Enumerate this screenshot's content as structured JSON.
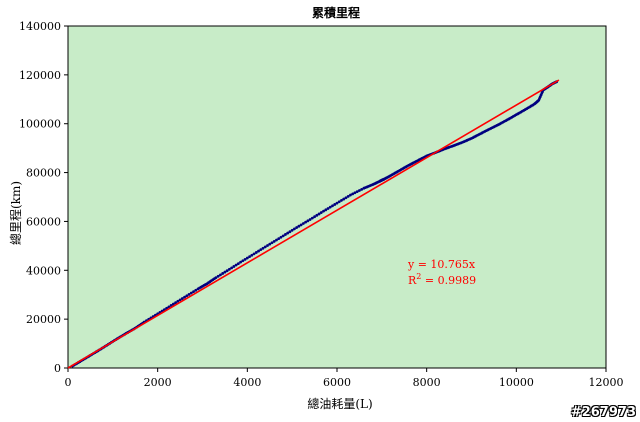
{
  "chart_data": {
    "type": "scatter",
    "title": "累積里程",
    "xlabel": "總油耗量(L)",
    "ylabel": "總里程(km)",
    "xlim": [
      0,
      12000
    ],
    "ylim": [
      0,
      140000
    ],
    "x_ticks": [
      0,
      2000,
      4000,
      6000,
      8000,
      10000,
      12000
    ],
    "y_ticks": [
      0,
      20000,
      40000,
      60000,
      80000,
      100000,
      120000,
      140000
    ],
    "grid": false,
    "legend": "none",
    "background_color": "#c8ecc8",
    "series": [
      {
        "color": "#000080",
        "x": [
          100,
          300,
          500,
          700,
          900,
          1100,
          1300,
          1500,
          1700,
          2000,
          2300,
          2600,
          2900,
          3100,
          3300,
          3600,
          3900,
          4200,
          4500,
          4800,
          5100,
          5400,
          5700,
          6000,
          6300,
          6600,
          6800,
          6950,
          7000,
          7050,
          7200,
          7400,
          7600,
          7800,
          8000,
          8200,
          8400,
          8600,
          8800,
          9000,
          9200,
          9400,
          9600,
          9800,
          10000,
          10200,
          10400,
          10500,
          10600,
          10700,
          10800,
          10900
        ],
        "y": [
          800,
          3000,
          5200,
          7400,
          9700,
          12000,
          14200,
          16300,
          18800,
          22200,
          25600,
          29000,
          32400,
          34500,
          37000,
          40400,
          43900,
          47300,
          50700,
          54100,
          57500,
          60800,
          64200,
          67500,
          70800,
          73600,
          75100,
          76400,
          76900,
          77300,
          78800,
          80900,
          83000,
          84900,
          86800,
          88200,
          89700,
          91000,
          92400,
          94000,
          95900,
          97800,
          99600,
          101600,
          103700,
          105800,
          108000,
          109600,
          113800,
          115000,
          116300,
          117200
        ]
      }
    ],
    "trendline": {
      "color": "#ff0000",
      "slope": 10.765,
      "x_range": [
        0,
        10950
      ]
    },
    "annotations": {
      "equation": "y = 10.765x",
      "r2_prefix": "R",
      "r2_sup": "2",
      "r2_suffix": " = 0.9989"
    }
  },
  "watermark": "#267973"
}
